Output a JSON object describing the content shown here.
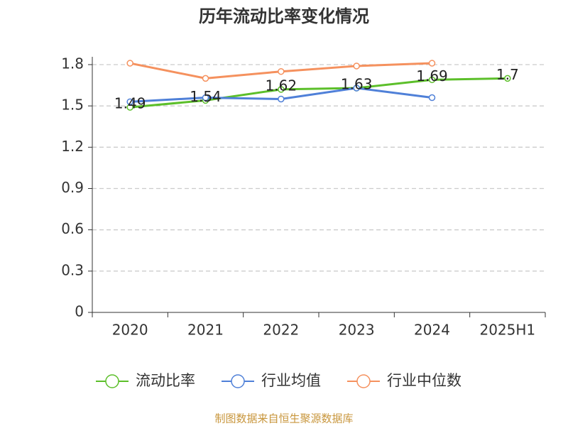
{
  "chart_data": {
    "type": "line",
    "title": "历年流动比率变化情况",
    "source": "制图数据来自恒生聚源数据库",
    "categories": [
      "2020",
      "2021",
      "2022",
      "2023",
      "2024",
      "2025H1"
    ],
    "series": [
      {
        "name": "流动比率",
        "color": "#5cbf2a",
        "values": [
          1.49,
          1.54,
          1.62,
          1.63,
          1.69,
          1.7
        ],
        "show_labels": true
      },
      {
        "name": "行业均值",
        "color": "#4f80d8",
        "values": [
          1.53,
          1.56,
          1.55,
          1.63,
          1.56,
          null
        ],
        "show_labels": false
      },
      {
        "name": "行业中位数",
        "color": "#f5915e",
        "values": [
          1.81,
          1.7,
          1.75,
          1.79,
          1.81,
          null
        ],
        "show_labels": false
      }
    ],
    "ylim": [
      0,
      1.8
    ],
    "yticks": [
      0,
      0.3,
      0.6,
      0.9,
      1.2,
      1.5,
      1.8
    ],
    "grid": true
  }
}
